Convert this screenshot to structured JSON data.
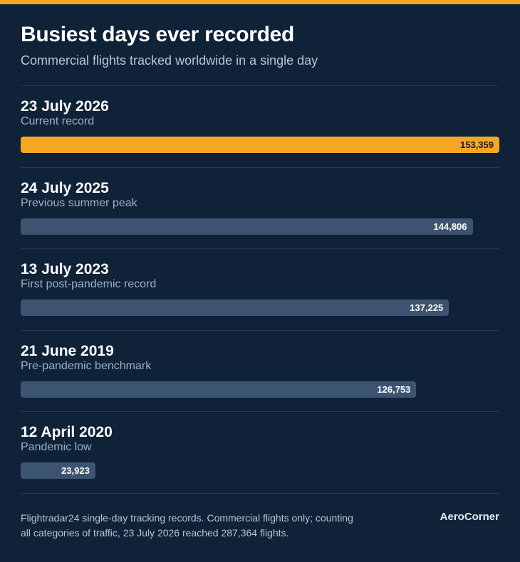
{
  "chart_data": {
    "type": "bar",
    "orientation": "horizontal",
    "title": "Busiest days ever recorded",
    "subtitle": "Commercial flights tracked worldwide in a single day",
    "categories": [
      "23 July 2026",
      "24 July 2025",
      "13 July 2023",
      "21 June 2019",
      "12 April 2020"
    ],
    "descriptions": [
      "Current record",
      "Previous summer peak",
      "First post-pandemic record",
      "Pre-pandemic benchmark",
      "Pandemic low"
    ],
    "values": [
      153359,
      144806,
      137225,
      126753,
      23923
    ],
    "value_labels": [
      "153,359",
      "144,806",
      "137,225",
      "126,753",
      "23,923"
    ],
    "colors": [
      "#f5a623",
      "#3d5470",
      "#3d5470",
      "#3d5470",
      "#3d5470"
    ],
    "note": "Flightradar24 single-day tracking records. Commercial flights only; counting all categories of traffic, 23 July 2026 reached 287,364 flights.",
    "brand": "AeroCorner"
  }
}
